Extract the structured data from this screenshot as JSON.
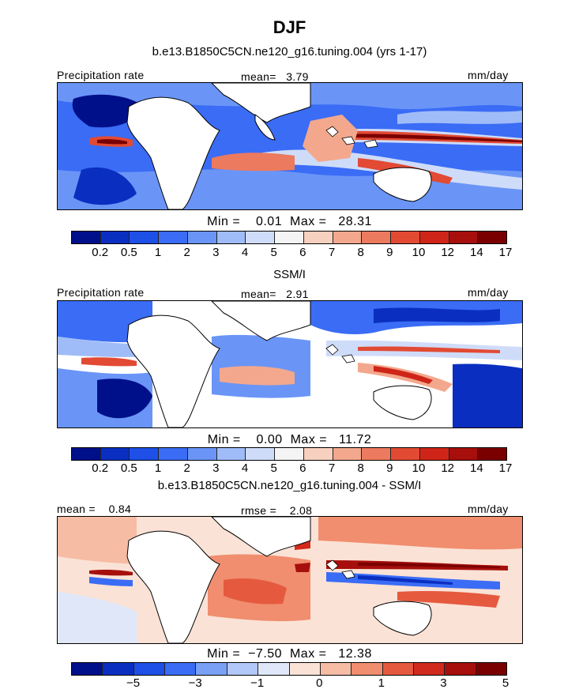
{
  "season": "DJF",
  "panels": [
    {
      "title": "b.e13.B1850C5CN.ne120_g16.tuning.004 (yrs 1-17)",
      "left_label": "Precipitation rate",
      "mid_label": "mean=   3.79",
      "units": "mm/day",
      "minmax": "Min =    0.01  Max =   28.31",
      "ticks": [
        "0.2",
        "0.5",
        "1",
        "2",
        "3",
        "4",
        "5",
        "6",
        "7",
        "8",
        "9",
        "10",
        "12",
        "14",
        "17"
      ]
    },
    {
      "title": "SSM/I",
      "left_label": "Precipitation rate",
      "mid_label": "mean=   2.91",
      "units": "mm/day",
      "minmax": "Min =    0.00  Max =   11.72",
      "ticks": [
        "0.2",
        "0.5",
        "1",
        "2",
        "3",
        "4",
        "5",
        "6",
        "7",
        "8",
        "9",
        "10",
        "12",
        "14",
        "17"
      ]
    },
    {
      "title": "b.e13.B1850C5CN.ne120_g16.tuning.004 - SSM/I",
      "left_label": "mean =    0.84",
      "mid_label": "rmse =    2.08",
      "units": "mm/day",
      "minmax": "Min =  −7.50  Max =   12.38",
      "ticks": [
        "−5",
        "−3",
        "−1",
        "0",
        "1",
        "3",
        "5"
      ]
    }
  ],
  "colors": {
    "precip_scale": [
      "#00108a",
      "#0a2fc0",
      "#1e4fe6",
      "#3a6cf5",
      "#6a95f7",
      "#a0bcf8",
      "#cfdcf9",
      "#f4f4f4",
      "#f8d0bf",
      "#f3a88d",
      "#ec7a5e",
      "#e24a34",
      "#cf2519",
      "#a60f0c",
      "#7a0000"
    ],
    "diff_scale": [
      "#00108a",
      "#0a2fc0",
      "#1e4fe6",
      "#3a6cf5",
      "#7aa0f6",
      "#b2c8f8",
      "#dfe7f9",
      "#fbe2d6",
      "#f6bca4",
      "#f08e6f",
      "#e55a3e",
      "#cf2a1c",
      "#a60f0c",
      "#7a0000"
    ]
  }
}
